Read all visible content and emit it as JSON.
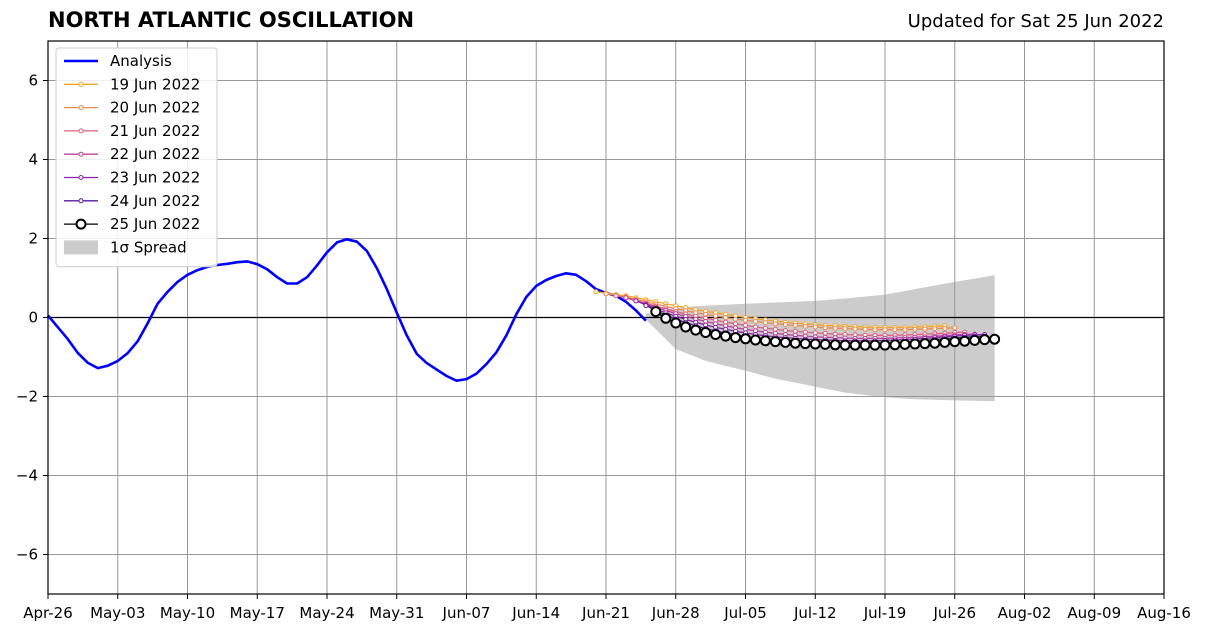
{
  "header": {
    "title": "NORTH ATLANTIC OSCILLATION",
    "updated": "Updated for Sat 25 Jun 2022"
  },
  "chart_data": {
    "type": "line",
    "title": "NORTH ATLANTIC OSCILLATION",
    "subtitle": "Updated for Sat 25 Jun 2022",
    "xlabel": "",
    "ylabel": "",
    "xlim": [
      "2022-04-26",
      "2022-08-16"
    ],
    "ylim": [
      -7,
      7
    ],
    "x_ticks": [
      "Apr-26",
      "May-03",
      "May-10",
      "May-17",
      "May-24",
      "May-31",
      "Jun-07",
      "Jun-14",
      "Jun-21",
      "Jun-28",
      "Jul-05",
      "Jul-12",
      "Jul-19",
      "Jul-26",
      "Aug-02",
      "Aug-09",
      "Aug-16"
    ],
    "y_ticks": [
      -6,
      -4,
      -2,
      0,
      2,
      4,
      6
    ],
    "grid": true,
    "legend_position": "top-left",
    "colors": {
      "analysis": "#0000ff",
      "spread": "#cccccc",
      "zero_line": "#000000",
      "grid": "#999999"
    },
    "spread": {
      "name": "1σ Spread",
      "x": [
        "2022-06-25",
        "2022-06-28",
        "2022-07-01",
        "2022-07-05",
        "2022-07-08",
        "2022-07-12",
        "2022-07-15",
        "2022-07-19",
        "2022-07-22",
        "2022-07-26",
        "2022-07-30"
      ],
      "upper": [
        0.1,
        0.25,
        0.3,
        0.35,
        0.38,
        0.42,
        0.48,
        0.58,
        0.72,
        0.9,
        1.07
      ],
      "lower": [
        -0.05,
        -0.8,
        -1.1,
        -1.35,
        -1.55,
        -1.75,
        -1.9,
        -2.02,
        -2.07,
        -2.1,
        -2.12
      ]
    },
    "series": [
      {
        "name": "Analysis",
        "color": "#0000ff",
        "x": [
          "2022-04-26",
          "2022-04-27",
          "2022-04-28",
          "2022-04-29",
          "2022-04-30",
          "2022-05-01",
          "2022-05-02",
          "2022-05-03",
          "2022-05-04",
          "2022-05-05",
          "2022-05-06",
          "2022-05-07",
          "2022-05-08",
          "2022-05-09",
          "2022-05-10",
          "2022-05-11",
          "2022-05-12",
          "2022-05-13",
          "2022-05-14",
          "2022-05-15",
          "2022-05-16",
          "2022-05-17",
          "2022-05-18",
          "2022-05-19",
          "2022-05-20",
          "2022-05-21",
          "2022-05-22",
          "2022-05-23",
          "2022-05-24",
          "2022-05-25",
          "2022-05-26",
          "2022-05-27",
          "2022-05-28",
          "2022-05-29",
          "2022-05-30",
          "2022-05-31",
          "2022-06-01",
          "2022-06-02",
          "2022-06-03",
          "2022-06-04",
          "2022-06-05",
          "2022-06-06",
          "2022-06-07",
          "2022-06-08",
          "2022-06-09",
          "2022-06-10",
          "2022-06-11",
          "2022-06-12",
          "2022-06-13",
          "2022-06-14",
          "2022-06-15",
          "2022-06-16",
          "2022-06-17",
          "2022-06-18",
          "2022-06-19",
          "2022-06-20",
          "2022-06-21",
          "2022-06-22",
          "2022-06-23",
          "2022-06-24",
          "2022-06-25"
        ],
        "values": [
          0.05,
          -0.25,
          -0.55,
          -0.9,
          -1.15,
          -1.28,
          -1.22,
          -1.1,
          -0.9,
          -0.6,
          -0.15,
          0.35,
          0.65,
          0.9,
          1.08,
          1.2,
          1.28,
          1.33,
          1.36,
          1.4,
          1.42,
          1.35,
          1.22,
          1.02,
          0.86,
          0.86,
          1.02,
          1.32,
          1.65,
          1.9,
          1.98,
          1.92,
          1.68,
          1.25,
          0.72,
          0.12,
          -0.45,
          -0.92,
          -1.15,
          -1.32,
          -1.48,
          -1.6,
          -1.56,
          -1.42,
          -1.18,
          -0.88,
          -0.45,
          0.08,
          0.52,
          0.8,
          0.95,
          1.05,
          1.12,
          1.08,
          0.92,
          0.72,
          0.62,
          0.55,
          0.4,
          0.18,
          -0.08
        ]
      },
      {
        "name": "19 Jun 2022",
        "color": "#f5a623",
        "x": [
          "2022-06-20",
          "2022-06-21",
          "2022-06-22",
          "2022-06-23",
          "2022-06-24",
          "2022-06-25",
          "2022-06-26",
          "2022-06-27",
          "2022-06-28",
          "2022-06-29",
          "2022-06-30",
          "2022-07-01",
          "2022-07-02",
          "2022-07-03",
          "2022-07-04",
          "2022-07-05",
          "2022-07-06",
          "2022-07-07",
          "2022-07-08",
          "2022-07-09",
          "2022-07-10",
          "2022-07-11",
          "2022-07-12",
          "2022-07-13",
          "2022-07-14",
          "2022-07-15",
          "2022-07-16",
          "2022-07-17",
          "2022-07-18",
          "2022-07-19",
          "2022-07-20",
          "2022-07-21",
          "2022-07-22",
          "2022-07-23",
          "2022-07-24",
          "2022-07-25"
        ],
        "values": [
          0.65,
          0.62,
          0.58,
          0.55,
          0.5,
          0.45,
          0.4,
          0.35,
          0.3,
          0.25,
          0.2,
          0.16,
          0.12,
          0.08,
          0.04,
          0.0,
          -0.03,
          -0.06,
          -0.09,
          -0.12,
          -0.14,
          -0.16,
          -0.18,
          -0.2,
          -0.21,
          -0.22,
          -0.23,
          -0.24,
          -0.25,
          -0.25,
          -0.25,
          -0.25,
          -0.24,
          -0.23,
          -0.22,
          -0.21
        ]
      },
      {
        "name": "20 Jun 2022",
        "color": "#f08a4b",
        "x": [
          "2022-06-21",
          "2022-06-22",
          "2022-06-23",
          "2022-06-24",
          "2022-06-25",
          "2022-06-26",
          "2022-06-27",
          "2022-06-28",
          "2022-06-29",
          "2022-06-30",
          "2022-07-01",
          "2022-07-02",
          "2022-07-03",
          "2022-07-04",
          "2022-07-05",
          "2022-07-06",
          "2022-07-07",
          "2022-07-08",
          "2022-07-09",
          "2022-07-10",
          "2022-07-11",
          "2022-07-12",
          "2022-07-13",
          "2022-07-14",
          "2022-07-15",
          "2022-07-16",
          "2022-07-17",
          "2022-07-18",
          "2022-07-19",
          "2022-07-20",
          "2022-07-21",
          "2022-07-22",
          "2022-07-23",
          "2022-07-24",
          "2022-07-25",
          "2022-07-26"
        ],
        "values": [
          0.6,
          0.56,
          0.52,
          0.46,
          0.4,
          0.34,
          0.28,
          0.22,
          0.17,
          0.12,
          0.08,
          0.04,
          0.0,
          -0.04,
          -0.07,
          -0.1,
          -0.13,
          -0.16,
          -0.18,
          -0.2,
          -0.22,
          -0.24,
          -0.26,
          -0.27,
          -0.28,
          -0.29,
          -0.3,
          -0.31,
          -0.31,
          -0.31,
          -0.31,
          -0.3,
          -0.29,
          -0.28,
          -0.27,
          -0.26
        ]
      },
      {
        "name": "21 Jun 2022",
        "color": "#e0607e",
        "x": [
          "2022-06-22",
          "2022-06-23",
          "2022-06-24",
          "2022-06-25",
          "2022-06-26",
          "2022-06-27",
          "2022-06-28",
          "2022-06-29",
          "2022-06-30",
          "2022-07-01",
          "2022-07-02",
          "2022-07-03",
          "2022-07-04",
          "2022-07-05",
          "2022-07-06",
          "2022-07-07",
          "2022-07-08",
          "2022-07-09",
          "2022-07-10",
          "2022-07-11",
          "2022-07-12",
          "2022-07-13",
          "2022-07-14",
          "2022-07-15",
          "2022-07-16",
          "2022-07-17",
          "2022-07-18",
          "2022-07-19",
          "2022-07-20",
          "2022-07-21",
          "2022-07-22",
          "2022-07-23",
          "2022-07-24",
          "2022-07-25",
          "2022-07-26",
          "2022-07-27"
        ],
        "values": [
          0.55,
          0.5,
          0.43,
          0.36,
          0.29,
          0.22,
          0.15,
          0.09,
          0.03,
          -0.02,
          -0.07,
          -0.12,
          -0.16,
          -0.2,
          -0.24,
          -0.27,
          -0.3,
          -0.33,
          -0.35,
          -0.37,
          -0.39,
          -0.4,
          -0.42,
          -0.43,
          -0.44,
          -0.45,
          -0.45,
          -0.45,
          -0.45,
          -0.44,
          -0.43,
          -0.42,
          -0.41,
          -0.4,
          -0.38,
          -0.37
        ]
      },
      {
        "name": "22 Jun 2022",
        "color": "#c2409a",
        "x": [
          "2022-06-23",
          "2022-06-24",
          "2022-06-25",
          "2022-06-26",
          "2022-06-27",
          "2022-06-28",
          "2022-06-29",
          "2022-06-30",
          "2022-07-01",
          "2022-07-02",
          "2022-07-03",
          "2022-07-04",
          "2022-07-05",
          "2022-07-06",
          "2022-07-07",
          "2022-07-08",
          "2022-07-09",
          "2022-07-10",
          "2022-07-11",
          "2022-07-12",
          "2022-07-13",
          "2022-07-14",
          "2022-07-15",
          "2022-07-16",
          "2022-07-17",
          "2022-07-18",
          "2022-07-19",
          "2022-07-20",
          "2022-07-21",
          "2022-07-22",
          "2022-07-23",
          "2022-07-24",
          "2022-07-25",
          "2022-07-26",
          "2022-07-27",
          "2022-07-28"
        ],
        "values": [
          0.5,
          0.42,
          0.34,
          0.26,
          0.18,
          0.1,
          0.03,
          -0.04,
          -0.1,
          -0.16,
          -0.21,
          -0.26,
          -0.3,
          -0.34,
          -0.37,
          -0.4,
          -0.43,
          -0.45,
          -0.47,
          -0.49,
          -0.5,
          -0.51,
          -0.52,
          -0.53,
          -0.53,
          -0.53,
          -0.53,
          -0.52,
          -0.51,
          -0.5,
          -0.49,
          -0.47,
          -0.46,
          -0.44,
          -0.43,
          -0.42
        ]
      },
      {
        "name": "23 Jun 2022",
        "color": "#8e1fb0",
        "x": [
          "2022-06-24",
          "2022-06-25",
          "2022-06-26",
          "2022-06-27",
          "2022-06-28",
          "2022-06-29",
          "2022-06-30",
          "2022-07-01",
          "2022-07-02",
          "2022-07-03",
          "2022-07-04",
          "2022-07-05",
          "2022-07-06",
          "2022-07-07",
          "2022-07-08",
          "2022-07-09",
          "2022-07-10",
          "2022-07-11",
          "2022-07-12",
          "2022-07-13",
          "2022-07-14",
          "2022-07-15",
          "2022-07-16",
          "2022-07-17",
          "2022-07-18",
          "2022-07-19",
          "2022-07-20",
          "2022-07-21",
          "2022-07-22",
          "2022-07-23",
          "2022-07-24",
          "2022-07-25",
          "2022-07-26",
          "2022-07-27",
          "2022-07-28",
          "2022-07-29"
        ],
        "values": [
          0.42,
          0.32,
          0.22,
          0.12,
          0.03,
          -0.05,
          -0.12,
          -0.19,
          -0.25,
          -0.3,
          -0.35,
          -0.39,
          -0.43,
          -0.46,
          -0.49,
          -0.51,
          -0.53,
          -0.55,
          -0.56,
          -0.57,
          -0.58,
          -0.59,
          -0.59,
          -0.59,
          -0.59,
          -0.58,
          -0.57,
          -0.56,
          -0.55,
          -0.53,
          -0.51,
          -0.49,
          -0.47,
          -0.45,
          -0.44,
          -0.43
        ]
      },
      {
        "name": "24 Jun 2022",
        "color": "#5a1a9c",
        "x": [
          "2022-06-25",
          "2022-06-26",
          "2022-06-27",
          "2022-06-28",
          "2022-06-29",
          "2022-06-30",
          "2022-07-01",
          "2022-07-02",
          "2022-07-03",
          "2022-07-04",
          "2022-07-05",
          "2022-07-06",
          "2022-07-07",
          "2022-07-08",
          "2022-07-09",
          "2022-07-10",
          "2022-07-11",
          "2022-07-12",
          "2022-07-13",
          "2022-07-14",
          "2022-07-15",
          "2022-07-16",
          "2022-07-17",
          "2022-07-18",
          "2022-07-19",
          "2022-07-20",
          "2022-07-21",
          "2022-07-22",
          "2022-07-23",
          "2022-07-24",
          "2022-07-25",
          "2022-07-26",
          "2022-07-27",
          "2022-07-28",
          "2022-07-29"
        ],
        "values": [
          0.3,
          0.18,
          0.06,
          -0.04,
          -0.13,
          -0.21,
          -0.28,
          -0.34,
          -0.39,
          -0.44,
          -0.48,
          -0.52,
          -0.55,
          -0.58,
          -0.6,
          -0.62,
          -0.64,
          -0.65,
          -0.66,
          -0.67,
          -0.67,
          -0.67,
          -0.67,
          -0.66,
          -0.65,
          -0.64,
          -0.62,
          -0.6,
          -0.58,
          -0.56,
          -0.54,
          -0.52,
          -0.5,
          -0.48,
          -0.47
        ]
      },
      {
        "name": "25 Jun 2022",
        "color": "#000000",
        "x": [
          "2022-06-26",
          "2022-06-27",
          "2022-06-28",
          "2022-06-29",
          "2022-06-30",
          "2022-07-01",
          "2022-07-02",
          "2022-07-03",
          "2022-07-04",
          "2022-07-05",
          "2022-07-06",
          "2022-07-07",
          "2022-07-08",
          "2022-07-09",
          "2022-07-10",
          "2022-07-11",
          "2022-07-12",
          "2022-07-13",
          "2022-07-14",
          "2022-07-15",
          "2022-07-16",
          "2022-07-17",
          "2022-07-18",
          "2022-07-19",
          "2022-07-20",
          "2022-07-21",
          "2022-07-22",
          "2022-07-23",
          "2022-07-24",
          "2022-07-25",
          "2022-07-26",
          "2022-07-27",
          "2022-07-28",
          "2022-07-29",
          "2022-07-30"
        ],
        "values": [
          0.15,
          -0.02,
          -0.14,
          -0.24,
          -0.32,
          -0.38,
          -0.43,
          -0.47,
          -0.51,
          -0.54,
          -0.57,
          -0.59,
          -0.61,
          -0.63,
          -0.65,
          -0.66,
          -0.67,
          -0.68,
          -0.69,
          -0.7,
          -0.7,
          -0.7,
          -0.7,
          -0.7,
          -0.69,
          -0.68,
          -0.67,
          -0.66,
          -0.65,
          -0.63,
          -0.61,
          -0.6,
          -0.58,
          -0.56,
          -0.55
        ]
      }
    ]
  }
}
